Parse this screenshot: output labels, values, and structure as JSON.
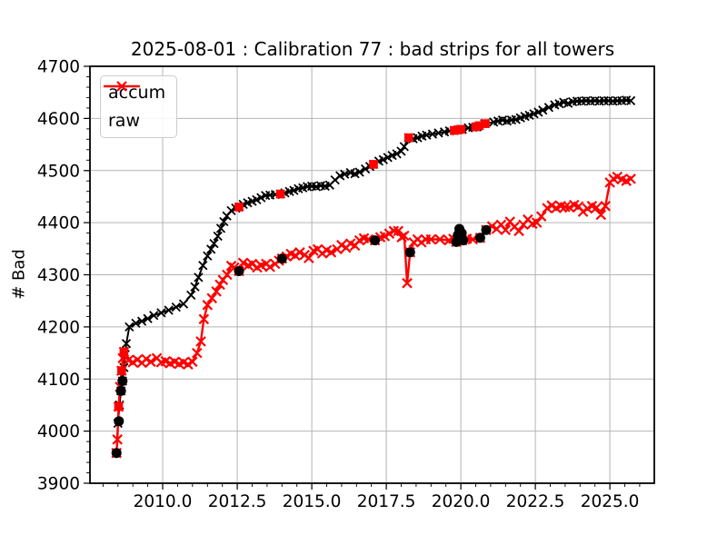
{
  "title": "2025-08-01 : Calibration 77 : bad strips for all towers",
  "legend": {
    "items": [
      {
        "label": "accum",
        "color": "#000000"
      },
      {
        "label": "raw",
        "color": "#ff0000"
      }
    ]
  },
  "colors": {
    "accum": "#000000",
    "raw": "#ff0000",
    "grid": "#b4b4b4",
    "spine": "#000000",
    "background": "#ffffff",
    "legend_border": "#cccccc"
  },
  "chart_data": {
    "type": "line",
    "title": "2025-08-01 : Calibration 77 : bad strips for all towers",
    "xlabel": "",
    "ylabel": "# Bad",
    "xlim": [
      2007.56,
      2026.49
    ],
    "ylim": [
      3900,
      4700
    ],
    "grid": true,
    "legend_position": "upper left",
    "x_ticks": [
      {
        "v": 2010.0,
        "label": "2010.0"
      },
      {
        "v": 2012.5,
        "label": "2012.5"
      },
      {
        "v": 2015.0,
        "label": "2015.0"
      },
      {
        "v": 2017.5,
        "label": "2017.5"
      },
      {
        "v": 2020.0,
        "label": "2020.0"
      },
      {
        "v": 2022.5,
        "label": "2022.5"
      },
      {
        "v": 2025.0,
        "label": "2025.0"
      }
    ],
    "y_ticks": [
      {
        "v": 3900,
        "label": "3900"
      },
      {
        "v": 4000,
        "label": "4000"
      },
      {
        "v": 4100,
        "label": "4100"
      },
      {
        "v": 4200,
        "label": "4200"
      },
      {
        "v": 4300,
        "label": "4300"
      },
      {
        "v": 4400,
        "label": "4400"
      },
      {
        "v": 4500,
        "label": "4500"
      },
      {
        "v": 4600,
        "label": "4600"
      },
      {
        "v": 4700,
        "label": "4700"
      }
    ],
    "minor_x_step": 0.5,
    "minor_y_step": 20,
    "series": [
      {
        "name": "accum",
        "color": "#000000",
        "marker": "x",
        "linewidth": 2,
        "markersize": 4.5,
        "markerstroke": 1.8,
        "points": [
          [
            2008.45,
            3958
          ],
          [
            2008.5,
            4015
          ],
          [
            2008.55,
            4050
          ],
          [
            2008.6,
            4077
          ],
          [
            2008.65,
            4096
          ],
          [
            2008.7,
            4122
          ],
          [
            2008.74,
            4147
          ],
          [
            2008.78,
            4168
          ],
          [
            2008.88,
            4200
          ],
          [
            2009.1,
            4207
          ],
          [
            2009.3,
            4211
          ],
          [
            2009.5,
            4216
          ],
          [
            2009.7,
            4222
          ],
          [
            2009.95,
            4227
          ],
          [
            2010.2,
            4232
          ],
          [
            2010.45,
            4238
          ],
          [
            2010.7,
            4244
          ],
          [
            2010.95,
            4261
          ],
          [
            2011.08,
            4277
          ],
          [
            2011.2,
            4295
          ],
          [
            2011.35,
            4318
          ],
          [
            2011.5,
            4336
          ],
          [
            2011.62,
            4349
          ],
          [
            2011.72,
            4360
          ],
          [
            2011.85,
            4374
          ],
          [
            2011.95,
            4389
          ],
          [
            2012.05,
            4402
          ],
          [
            2012.15,
            4413
          ],
          [
            2012.3,
            4423
          ],
          [
            2012.45,
            4428
          ],
          [
            2012.56,
            4430
          ],
          [
            2012.7,
            4435
          ],
          [
            2012.85,
            4438
          ],
          [
            2013.0,
            4441
          ],
          [
            2013.15,
            4444
          ],
          [
            2013.3,
            4448
          ],
          [
            2013.45,
            4452
          ],
          [
            2013.6,
            4453
          ],
          [
            2013.78,
            4454
          ],
          [
            2013.95,
            4455
          ],
          [
            2014.1,
            4457
          ],
          [
            2014.25,
            4460
          ],
          [
            2014.4,
            4462
          ],
          [
            2014.55,
            4465
          ],
          [
            2014.7,
            4467
          ],
          [
            2014.85,
            4469
          ],
          [
            2015.0,
            4470
          ],
          [
            2015.15,
            4469
          ],
          [
            2015.3,
            4471
          ],
          [
            2015.45,
            4470
          ],
          [
            2015.6,
            4472
          ],
          [
            2015.78,
            4482
          ],
          [
            2015.95,
            4490
          ],
          [
            2016.1,
            4493
          ],
          [
            2016.3,
            4496
          ],
          [
            2016.45,
            4494
          ],
          [
            2016.6,
            4497
          ],
          [
            2016.8,
            4503
          ],
          [
            2016.95,
            4508
          ],
          [
            2017.07,
            4512
          ],
          [
            2017.25,
            4518
          ],
          [
            2017.4,
            4521
          ],
          [
            2017.55,
            4525
          ],
          [
            2017.7,
            4529
          ],
          [
            2017.85,
            4532
          ],
          [
            2018.0,
            4537
          ],
          [
            2018.1,
            4546
          ],
          [
            2018.25,
            4563
          ],
          [
            2018.4,
            4561
          ],
          [
            2018.55,
            4563
          ],
          [
            2018.7,
            4566
          ],
          [
            2018.85,
            4568
          ],
          [
            2019.05,
            4570
          ],
          [
            2019.25,
            4572
          ],
          [
            2019.45,
            4574
          ],
          [
            2019.62,
            4576
          ],
          [
            2019.78,
            4577
          ],
          [
            2019.9,
            4578
          ],
          [
            2020.05,
            4579
          ],
          [
            2020.25,
            4582
          ],
          [
            2020.4,
            4583
          ],
          [
            2020.55,
            4584
          ],
          [
            2020.8,
            4590
          ],
          [
            2021.1,
            4593
          ],
          [
            2021.25,
            4595
          ],
          [
            2021.4,
            4597
          ],
          [
            2021.55,
            4595
          ],
          [
            2021.7,
            4597
          ],
          [
            2021.85,
            4598
          ],
          [
            2022.0,
            4601
          ],
          [
            2022.15,
            4604
          ],
          [
            2022.3,
            4606
          ],
          [
            2022.45,
            4609
          ],
          [
            2022.6,
            4612
          ],
          [
            2022.75,
            4616
          ],
          [
            2022.95,
            4621
          ],
          [
            2023.15,
            4626
          ],
          [
            2023.3,
            4628
          ],
          [
            2023.45,
            4631
          ],
          [
            2023.6,
            4629
          ],
          [
            2023.75,
            4632
          ],
          [
            2023.9,
            4633
          ],
          [
            2024.05,
            4633
          ],
          [
            2024.2,
            4634
          ],
          [
            2024.35,
            4633
          ],
          [
            2024.5,
            4634
          ],
          [
            2024.65,
            4633
          ],
          [
            2024.8,
            4634
          ],
          [
            2024.95,
            4634
          ],
          [
            2025.1,
            4633
          ],
          [
            2025.25,
            4634
          ],
          [
            2025.4,
            4634
          ],
          [
            2025.55,
            4635
          ],
          [
            2025.7,
            4634
          ]
        ]
      },
      {
        "name": "raw",
        "color": "#ff0000",
        "marker": "x",
        "linewidth": 2.4,
        "markersize": 5,
        "markerstroke": 2.2,
        "points": [
          [
            2008.45,
            3958
          ],
          [
            2008.48,
            3984
          ],
          [
            2008.52,
            4047
          ],
          [
            2008.57,
            4085
          ],
          [
            2008.62,
            4116
          ],
          [
            2008.66,
            4140
          ],
          [
            2008.7,
            4152
          ],
          [
            2008.85,
            4136
          ],
          [
            2009.0,
            4132
          ],
          [
            2009.15,
            4137
          ],
          [
            2009.3,
            4131
          ],
          [
            2009.45,
            4138
          ],
          [
            2009.6,
            4133
          ],
          [
            2009.8,
            4140
          ],
          [
            2009.95,
            4132
          ],
          [
            2010.1,
            4134
          ],
          [
            2010.25,
            4130
          ],
          [
            2010.4,
            4133
          ],
          [
            2010.55,
            4129
          ],
          [
            2010.7,
            4132
          ],
          [
            2010.85,
            4128
          ],
          [
            2011.0,
            4133
          ],
          [
            2011.15,
            4150
          ],
          [
            2011.28,
            4172
          ],
          [
            2011.38,
            4215
          ],
          [
            2011.5,
            4242
          ],
          [
            2011.65,
            4255
          ],
          [
            2011.8,
            4268
          ],
          [
            2011.92,
            4281
          ],
          [
            2012.02,
            4290
          ],
          [
            2012.16,
            4300
          ],
          [
            2012.3,
            4317
          ],
          [
            2012.4,
            4314
          ],
          [
            2012.56,
            4307
          ],
          [
            2012.7,
            4323
          ],
          [
            2012.87,
            4318
          ],
          [
            2013.0,
            4321
          ],
          [
            2013.17,
            4314
          ],
          [
            2013.3,
            4318
          ],
          [
            2013.47,
            4321
          ],
          [
            2013.6,
            4315
          ],
          [
            2013.77,
            4321
          ],
          [
            2013.9,
            4327
          ],
          [
            2014.0,
            4331
          ],
          [
            2014.15,
            4335
          ],
          [
            2014.3,
            4340
          ],
          [
            2014.45,
            4337
          ],
          [
            2014.6,
            4343
          ],
          [
            2014.76,
            4338
          ],
          [
            2014.9,
            4332
          ],
          [
            2015.06,
            4346
          ],
          [
            2015.2,
            4349
          ],
          [
            2015.35,
            4341
          ],
          [
            2015.5,
            4347
          ],
          [
            2015.65,
            4343
          ],
          [
            2015.85,
            4349
          ],
          [
            2016.0,
            4357
          ],
          [
            2016.15,
            4352
          ],
          [
            2016.3,
            4360
          ],
          [
            2016.45,
            4356
          ],
          [
            2016.6,
            4366
          ],
          [
            2016.75,
            4370
          ],
          [
            2016.9,
            4368
          ],
          [
            2017.12,
            4366
          ],
          [
            2017.3,
            4372
          ],
          [
            2017.45,
            4374
          ],
          [
            2017.6,
            4379
          ],
          [
            2017.75,
            4384
          ],
          [
            2017.9,
            4384
          ],
          [
            2018.02,
            4372
          ],
          [
            2018.1,
            4375
          ],
          [
            2018.2,
            4284
          ],
          [
            2018.3,
            4343
          ],
          [
            2018.42,
            4362
          ],
          [
            2018.55,
            4368
          ],
          [
            2018.68,
            4362
          ],
          [
            2018.82,
            4368
          ],
          [
            2019.0,
            4368
          ],
          [
            2019.3,
            4368
          ],
          [
            2019.6,
            4366
          ],
          [
            2019.75,
            4369
          ],
          [
            2019.85,
            4363
          ],
          [
            2019.95,
            4376
          ],
          [
            2020.05,
            4366
          ],
          [
            2020.2,
            4369
          ],
          [
            2020.4,
            4368
          ],
          [
            2020.65,
            4371
          ],
          [
            2020.85,
            4386
          ],
          [
            2021.05,
            4393
          ],
          [
            2021.2,
            4388
          ],
          [
            2021.35,
            4396
          ],
          [
            2021.5,
            4386
          ],
          [
            2021.65,
            4402
          ],
          [
            2021.8,
            4392
          ],
          [
            2021.95,
            4384
          ],
          [
            2022.1,
            4396
          ],
          [
            2022.25,
            4406
          ],
          [
            2022.4,
            4398
          ],
          [
            2022.55,
            4400
          ],
          [
            2022.7,
            4412
          ],
          [
            2022.9,
            4428
          ],
          [
            2023.05,
            4433
          ],
          [
            2023.2,
            4428
          ],
          [
            2023.35,
            4432
          ],
          [
            2023.5,
            4430
          ],
          [
            2023.65,
            4429
          ],
          [
            2023.8,
            4434
          ],
          [
            2023.95,
            4431
          ],
          [
            2024.1,
            4421
          ],
          [
            2024.25,
            4427
          ],
          [
            2024.4,
            4432
          ],
          [
            2024.55,
            4429
          ],
          [
            2024.7,
            4415
          ],
          [
            2024.85,
            4432
          ],
          [
            2025.0,
            4477
          ],
          [
            2025.12,
            4484
          ],
          [
            2025.25,
            4488
          ],
          [
            2025.4,
            4483
          ],
          [
            2025.55,
            4480
          ],
          [
            2025.7,
            4484
          ]
        ]
      }
    ],
    "event_markers": {
      "black_dots": [
        [
          2008.45,
          3958
        ],
        [
          2008.53,
          4019
        ],
        [
          2008.6,
          4077
        ],
        [
          2008.65,
          4096
        ],
        [
          2012.56,
          4307
        ],
        [
          2014.0,
          4331
        ],
        [
          2017.12,
          4366
        ],
        [
          2018.3,
          4343
        ],
        [
          2019.85,
          4363
        ],
        [
          2019.9,
          4376
        ],
        [
          2019.95,
          4388
        ],
        [
          2019.98,
          4368
        ],
        [
          2020.03,
          4380
        ],
        [
          2020.08,
          4366
        ],
        [
          2020.65,
          4371
        ],
        [
          2020.85,
          4386
        ]
      ],
      "red_squares": [
        [
          2008.52,
          4047
        ],
        [
          2008.62,
          4116
        ],
        [
          2008.7,
          4152
        ],
        [
          2012.56,
          4430
        ],
        [
          2013.95,
          4455
        ],
        [
          2017.07,
          4512
        ],
        [
          2018.25,
          4563
        ],
        [
          2019.78,
          4577
        ],
        [
          2019.9,
          4578
        ],
        [
          2020.0,
          4579
        ],
        [
          2020.5,
          4584
        ],
        [
          2020.62,
          4586
        ],
        [
          2020.82,
          4590
        ]
      ]
    }
  }
}
